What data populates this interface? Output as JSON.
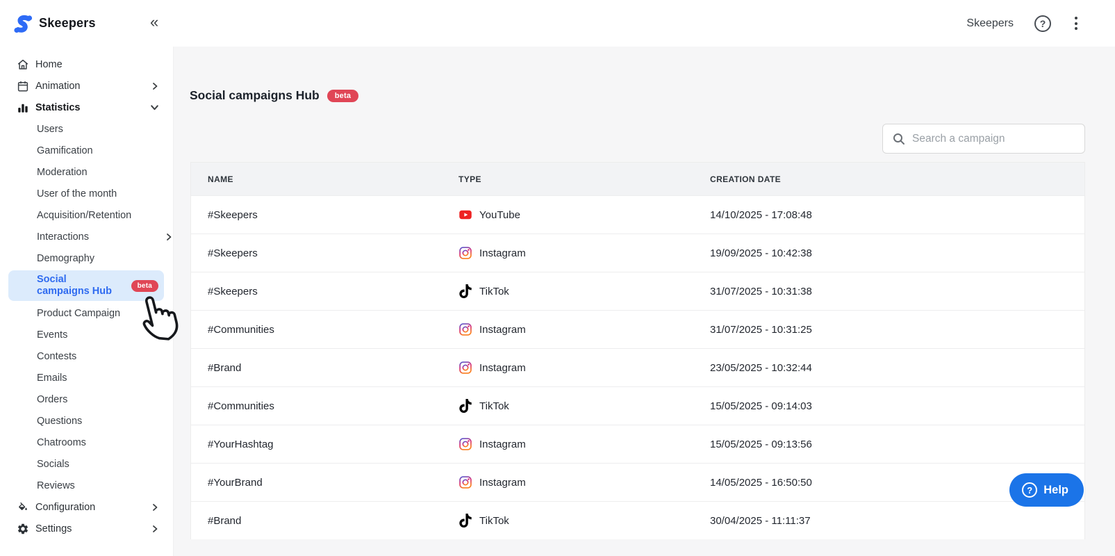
{
  "brand": {
    "name": "Skeepers",
    "collapse_icon": "«"
  },
  "topbar": {
    "account_label": "Skeepers",
    "question_mark": "?"
  },
  "sidebar": {
    "items": [
      {
        "label": "Home",
        "type": "main",
        "icon": "home"
      },
      {
        "label": "Animation",
        "type": "main",
        "icon": "calendar",
        "chevron": "right"
      },
      {
        "label": "Statistics",
        "type": "main",
        "icon": "bar-chart",
        "chevron": "down",
        "bold": true
      },
      {
        "label": "Users",
        "type": "sub"
      },
      {
        "label": "Gamification",
        "type": "sub"
      },
      {
        "label": "Moderation",
        "type": "sub"
      },
      {
        "label": "User of the month",
        "type": "sub"
      },
      {
        "label": "Acquisition/Retention",
        "type": "sub"
      },
      {
        "label": "Interactions",
        "type": "sub",
        "chevron": "right"
      },
      {
        "label": "Demography",
        "type": "sub"
      },
      {
        "label": "Social campaigns Hub",
        "type": "sub",
        "selected": true,
        "badge": "beta"
      },
      {
        "label": "Product Campaign",
        "type": "sub"
      },
      {
        "label": "Events",
        "type": "sub"
      },
      {
        "label": "Contests",
        "type": "sub"
      },
      {
        "label": "Emails",
        "type": "sub"
      },
      {
        "label": "Orders",
        "type": "sub"
      },
      {
        "label": "Questions",
        "type": "sub"
      },
      {
        "label": "Chatrooms",
        "type": "sub"
      },
      {
        "label": "Socials",
        "type": "sub"
      },
      {
        "label": "Reviews",
        "type": "sub"
      },
      {
        "label": "Configuration",
        "type": "main",
        "icon": "paint",
        "chevron": "right"
      },
      {
        "label": "Settings",
        "type": "main",
        "icon": "gear",
        "chevron": "right"
      }
    ]
  },
  "main": {
    "title": "Social campaigns Hub",
    "beta_badge": "beta",
    "search_placeholder": "Search a campaign",
    "table": {
      "columns": [
        "NAME",
        "TYPE",
        "CREATION DATE"
      ],
      "rows": [
        {
          "name": "#Skeepers",
          "platform": "YouTube",
          "date": "14/10/2025 - 17:08:48"
        },
        {
          "name": "#Skeepers",
          "platform": "Instagram",
          "date": "19/09/2025 - 10:42:38"
        },
        {
          "name": "#Skeepers",
          "platform": "TikTok",
          "date": "31/07/2025 - 10:31:38"
        },
        {
          "name": "#Communities",
          "platform": "Instagram",
          "date": "31/07/2025 - 10:31:25"
        },
        {
          "name": "#Brand",
          "platform": "Instagram",
          "date": "23/05/2025 - 10:32:44"
        },
        {
          "name": "#Communities",
          "platform": "TikTok",
          "date": "15/05/2025 - 09:14:03"
        },
        {
          "name": "#YourHashtag",
          "platform": "Instagram",
          "date": "15/05/2025 - 09:13:56"
        },
        {
          "name": "#YourBrand",
          "platform": "Instagram",
          "date": "14/05/2025 - 16:50:50"
        },
        {
          "name": "#Brand",
          "platform": "TikTok",
          "date": "30/04/2025 - 11:11:37"
        }
      ]
    }
  },
  "help_button": {
    "label": "Help",
    "question_mark": "?"
  },
  "colors": {
    "brand_blue": "#2e6bf6",
    "selected_bg": "#dcebfc",
    "selected_text": "#2f6bf0",
    "beta_red": "#e04656",
    "help_blue": "#1b74e8",
    "youtube_red": "#ee2222",
    "content_bg": "#f6f6f7"
  }
}
